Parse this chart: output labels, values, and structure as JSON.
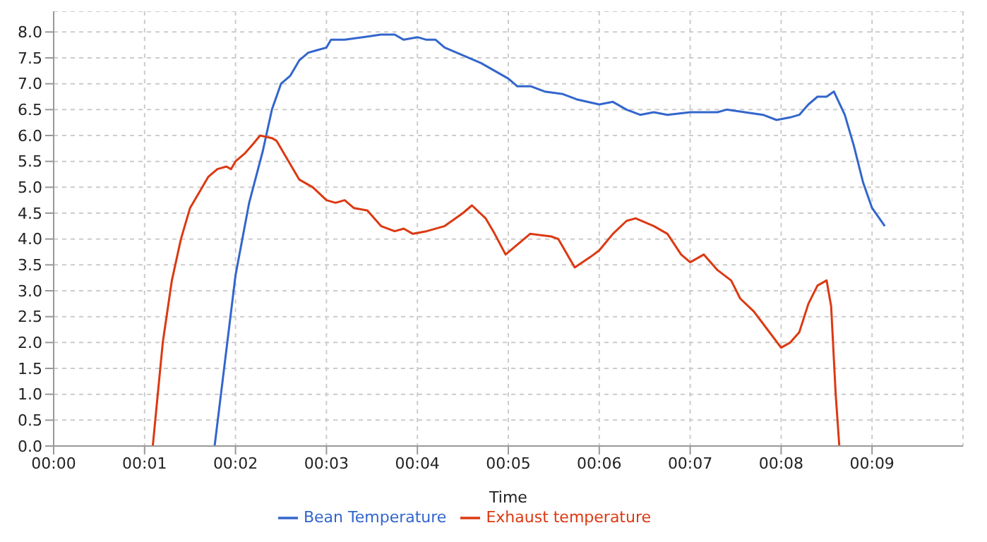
{
  "chart_data": {
    "type": "line",
    "xlabel": "Time",
    "xlim": [
      0,
      10
    ],
    "ylim": [
      0,
      8.4
    ],
    "xticks": [
      {
        "value": 0,
        "label": "00:00"
      },
      {
        "value": 1,
        "label": "00:01"
      },
      {
        "value": 2,
        "label": "00:02"
      },
      {
        "value": 3,
        "label": "00:03"
      },
      {
        "value": 4,
        "label": "00:04"
      },
      {
        "value": 5,
        "label": "00:05"
      },
      {
        "value": 6,
        "label": "00:06"
      },
      {
        "value": 7,
        "label": "00:07"
      },
      {
        "value": 8,
        "label": "00:08"
      },
      {
        "value": 9,
        "label": "00:09"
      }
    ],
    "yticks": [
      {
        "value": 0,
        "label": "0.0"
      },
      {
        "value": 0.5,
        "label": "0.5"
      },
      {
        "value": 1,
        "label": "1.0"
      },
      {
        "value": 1.5,
        "label": "1.5"
      },
      {
        "value": 2,
        "label": "2.0"
      },
      {
        "value": 2.5,
        "label": "2.5"
      },
      {
        "value": 3,
        "label": "3.0"
      },
      {
        "value": 3.5,
        "label": "3.5"
      },
      {
        "value": 4,
        "label": "4.0"
      },
      {
        "value": 4.5,
        "label": "4.5"
      },
      {
        "value": 5,
        "label": "5.0"
      },
      {
        "value": 5.5,
        "label": "5.5"
      },
      {
        "value": 6,
        "label": "6.0"
      },
      {
        "value": 6.5,
        "label": "6.5"
      },
      {
        "value": 7,
        "label": "7.0"
      },
      {
        "value": 7.5,
        "label": "7.5"
      },
      {
        "value": 8,
        "label": "8.0"
      }
    ],
    "grid": true,
    "legend": "bottom",
    "marker": "none",
    "line_style": "solid",
    "series": [
      {
        "name": "Bean Temperature",
        "color": "#3366cc",
        "x": [
          1.77,
          2.0,
          2.15,
          2.3,
          2.4,
          2.5,
          2.6,
          2.7,
          2.8,
          2.9,
          3.0,
          3.05,
          3.2,
          3.4,
          3.6,
          3.75,
          3.85,
          4.0,
          4.1,
          4.2,
          4.3,
          4.5,
          4.7,
          4.85,
          5.0,
          5.1,
          5.25,
          5.4,
          5.6,
          5.75,
          6.0,
          6.15,
          6.3,
          6.45,
          6.6,
          6.75,
          7.0,
          7.3,
          7.4,
          7.6,
          7.8,
          7.95,
          8.1,
          8.2,
          8.3,
          8.4,
          8.5,
          8.58,
          8.7,
          8.8,
          8.9,
          9.0,
          9.14
        ],
        "values": [
          0,
          3.3,
          4.7,
          5.7,
          6.5,
          7.0,
          7.15,
          7.45,
          7.6,
          7.65,
          7.7,
          7.85,
          7.85,
          7.9,
          7.95,
          7.95,
          7.85,
          7.9,
          7.85,
          7.85,
          7.7,
          7.55,
          7.4,
          7.25,
          7.1,
          6.95,
          6.95,
          6.85,
          6.8,
          6.7,
          6.6,
          6.65,
          6.5,
          6.4,
          6.45,
          6.4,
          6.45,
          6.45,
          6.5,
          6.45,
          6.4,
          6.3,
          6.35,
          6.4,
          6.6,
          6.75,
          6.75,
          6.85,
          6.4,
          5.8,
          5.1,
          4.6,
          4.25
        ]
      },
      {
        "name": "Exhaust temperature",
        "color": "#dc3912",
        "x": [
          1.09,
          1.2,
          1.3,
          1.4,
          1.5,
          1.6,
          1.7,
          1.8,
          1.9,
          1.95,
          2.0,
          2.1,
          2.2,
          2.27,
          2.4,
          2.45,
          2.55,
          2.7,
          2.85,
          3.0,
          3.1,
          3.2,
          3.3,
          3.45,
          3.6,
          3.75,
          3.85,
          3.95,
          4.1,
          4.3,
          4.5,
          4.6,
          4.75,
          4.85,
          4.97,
          5.24,
          5.47,
          5.55,
          5.73,
          5.9,
          6.0,
          6.15,
          6.3,
          6.4,
          6.6,
          6.75,
          6.9,
          7.0,
          7.15,
          7.3,
          7.45,
          7.55,
          7.7,
          7.85,
          8.0,
          8.1,
          8.2,
          8.3,
          8.4,
          8.5,
          8.55,
          8.6,
          8.64
        ],
        "values": [
          0,
          2.0,
          3.2,
          4.0,
          4.6,
          4.9,
          5.2,
          5.35,
          5.4,
          5.35,
          5.5,
          5.65,
          5.85,
          6.0,
          5.95,
          5.9,
          5.6,
          5.15,
          5.0,
          4.75,
          4.7,
          4.75,
          4.6,
          4.55,
          4.25,
          4.15,
          4.2,
          4.1,
          4.15,
          4.25,
          4.5,
          4.65,
          4.4,
          4.1,
          3.7,
          4.1,
          4.05,
          4.0,
          3.45,
          3.65,
          3.78,
          4.1,
          4.35,
          4.4,
          4.25,
          4.1,
          3.7,
          3.55,
          3.7,
          3.4,
          3.2,
          2.85,
          2.6,
          2.25,
          1.9,
          2.0,
          2.2,
          2.75,
          3.1,
          3.2,
          2.7,
          1.0,
          0
        ]
      }
    ]
  }
}
